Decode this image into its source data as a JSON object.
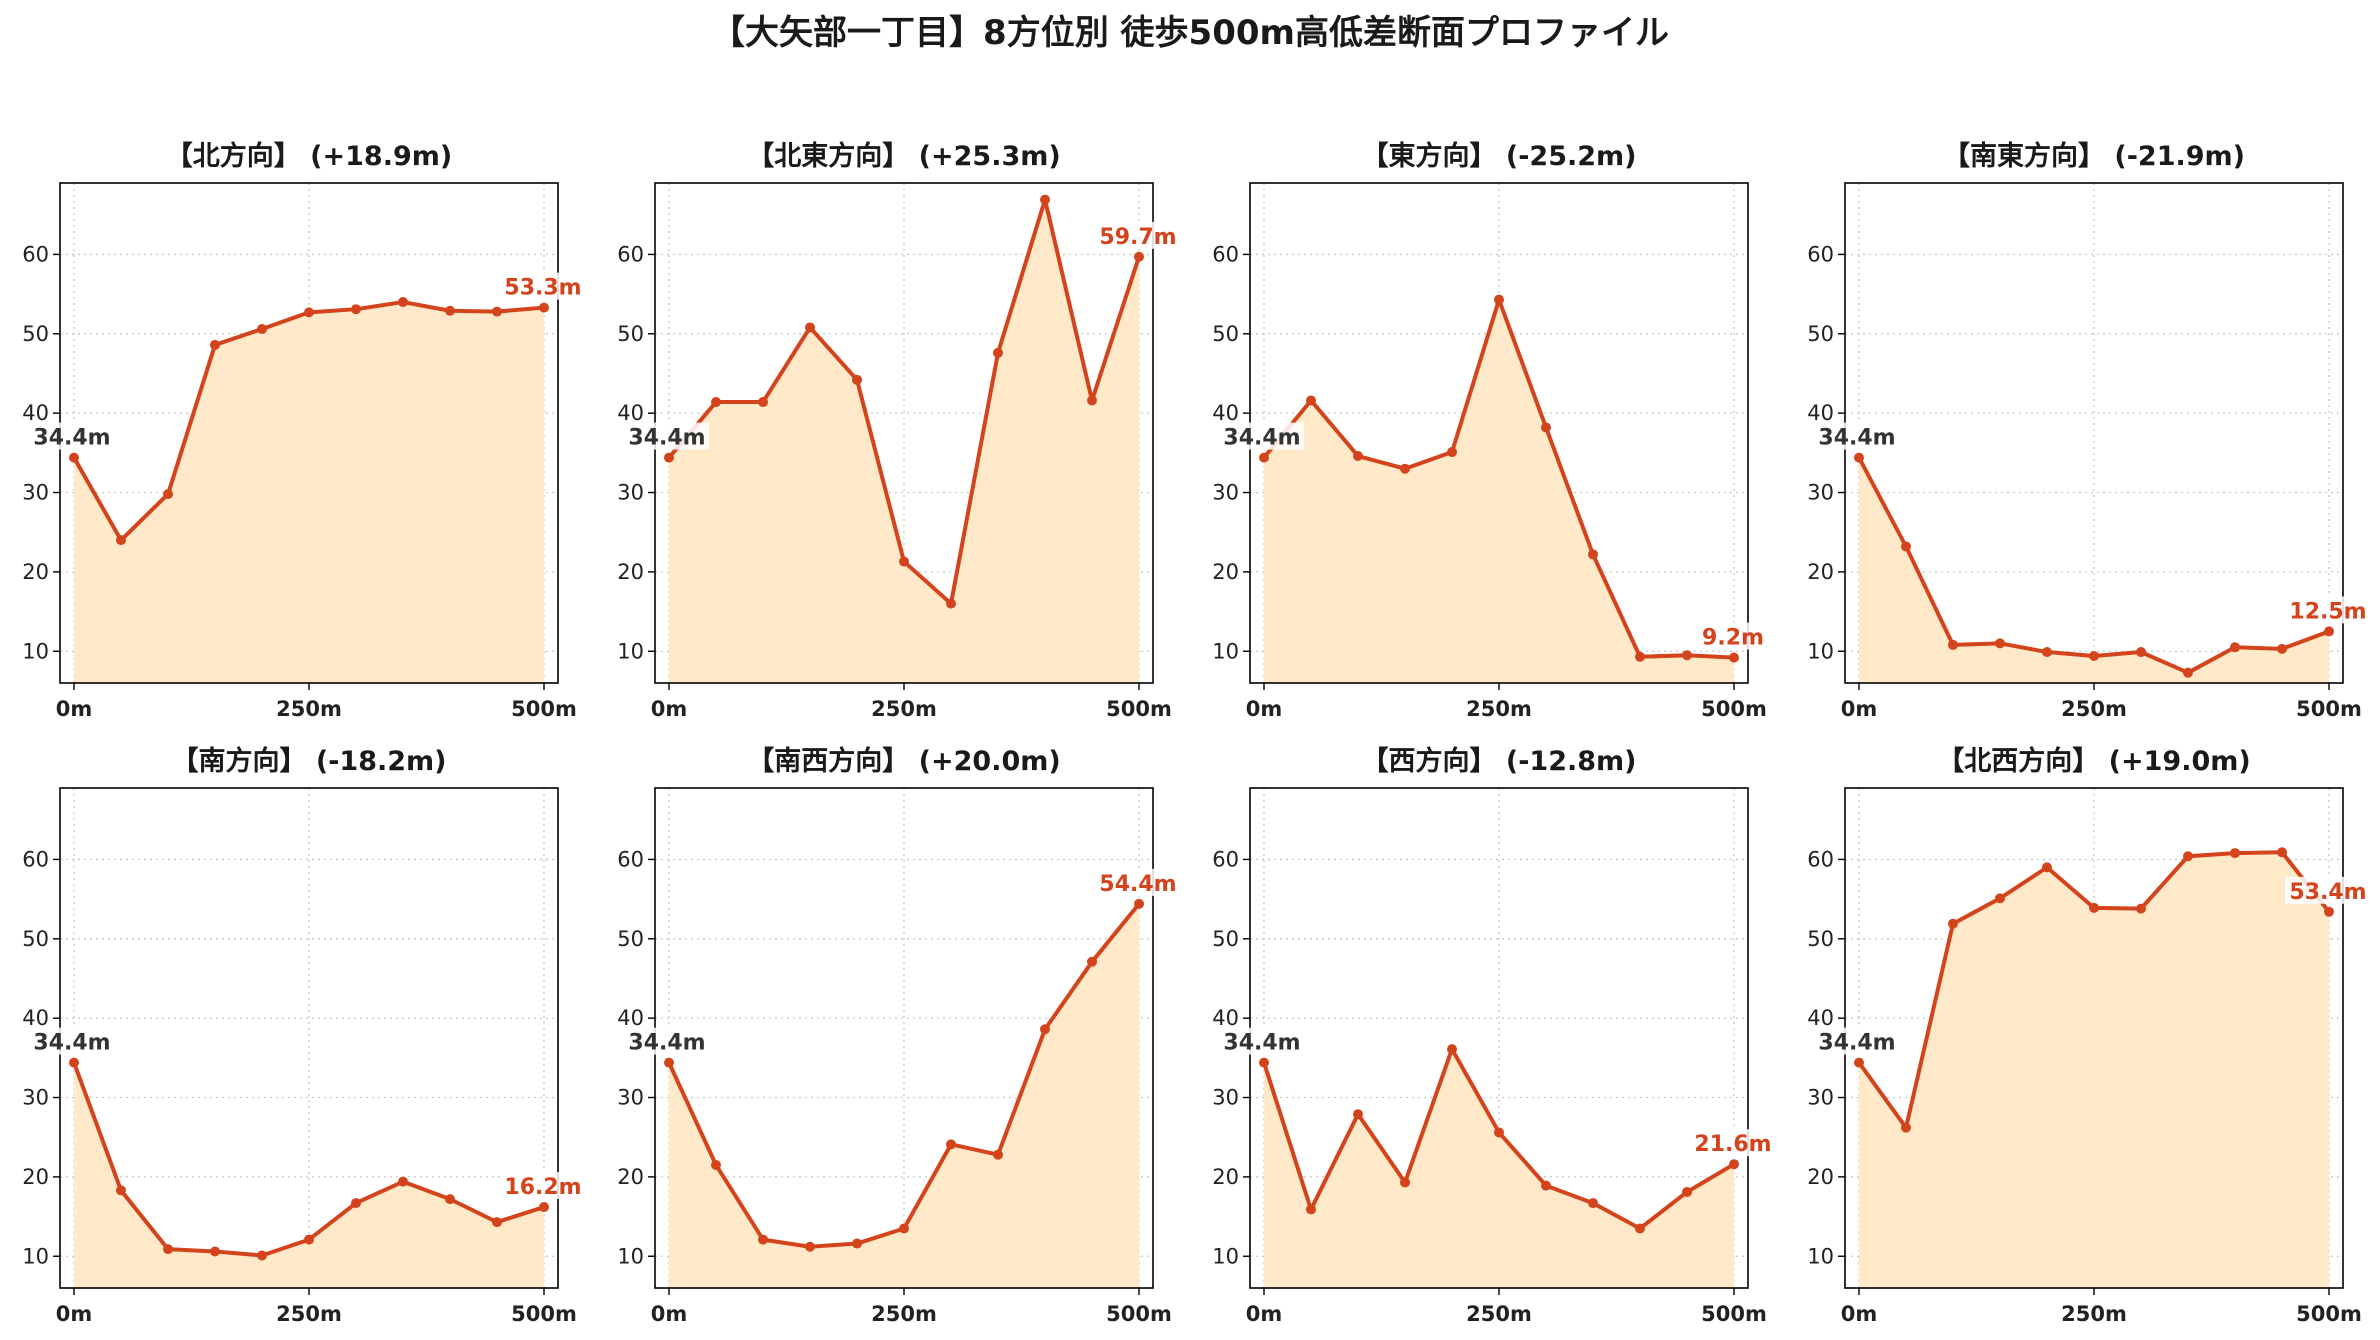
{
  "title": "【大矢部一丁目】8方位別 徒歩500m高低差断面プロファイル",
  "colors": {
    "line": "#d4441c",
    "fill": "#ffe9c8",
    "start_label": "#333333",
    "end_label": "#d4441c",
    "grid": "#c8c8c8"
  },
  "chart_data": [
    {
      "type": "area",
      "title": "【北方向】 (+18.9m)",
      "x": [
        0,
        50,
        100,
        150,
        200,
        250,
        300,
        350,
        400,
        450,
        500
      ],
      "values": [
        34.4,
        24.0,
        29.8,
        48.6,
        50.6,
        52.7,
        53.1,
        54.0,
        52.9,
        52.8,
        53.3
      ],
      "start_label": "34.4m",
      "end_label": "53.3m",
      "x_ticks": [
        "0m",
        "250m",
        "500m"
      ],
      "y_ticks": [
        "10",
        "20",
        "30",
        "40",
        "50",
        "60"
      ],
      "ylim": [
        6,
        69
      ],
      "grid": true
    },
    {
      "type": "area",
      "title": "【北東方向】 (+25.3m)",
      "x": [
        0,
        50,
        100,
        150,
        200,
        250,
        300,
        350,
        400,
        450,
        500
      ],
      "values": [
        34.4,
        41.4,
        41.4,
        50.8,
        44.2,
        21.3,
        16.0,
        47.6,
        66.9,
        41.6,
        59.7
      ],
      "start_label": "34.4m",
      "end_label": "59.7m",
      "x_ticks": [
        "0m",
        "250m",
        "500m"
      ],
      "y_ticks": [
        "10",
        "20",
        "30",
        "40",
        "50",
        "60"
      ],
      "ylim": [
        6,
        69
      ],
      "grid": true
    },
    {
      "type": "area",
      "title": "【東方向】 (-25.2m)",
      "x": [
        0,
        50,
        100,
        150,
        200,
        250,
        300,
        350,
        400,
        450,
        500
      ],
      "values": [
        34.4,
        41.6,
        34.6,
        33.0,
        35.1,
        54.3,
        38.2,
        22.2,
        9.3,
        9.5,
        9.2
      ],
      "start_label": "34.4m",
      "end_label": "9.2m",
      "x_ticks": [
        "0m",
        "250m",
        "500m"
      ],
      "y_ticks": [
        "10",
        "20",
        "30",
        "40",
        "50",
        "60"
      ],
      "ylim": [
        6,
        69
      ],
      "grid": true
    },
    {
      "type": "area",
      "title": "【南東方向】 (-21.9m)",
      "x": [
        0,
        50,
        100,
        150,
        200,
        250,
        300,
        350,
        400,
        450,
        500
      ],
      "values": [
        34.4,
        23.2,
        10.8,
        11.0,
        9.9,
        9.4,
        9.9,
        7.3,
        10.5,
        10.3,
        12.5
      ],
      "start_label": "34.4m",
      "end_label": "12.5m",
      "x_ticks": [
        "0m",
        "250m",
        "500m"
      ],
      "y_ticks": [
        "10",
        "20",
        "30",
        "40",
        "50",
        "60"
      ],
      "ylim": [
        6,
        69
      ],
      "grid": true
    },
    {
      "type": "area",
      "title": "【南方向】 (-18.2m)",
      "x": [
        0,
        50,
        100,
        150,
        200,
        250,
        300,
        350,
        400,
        450,
        500
      ],
      "values": [
        34.4,
        18.3,
        10.9,
        10.6,
        10.1,
        12.1,
        16.7,
        19.4,
        17.2,
        14.3,
        16.2
      ],
      "start_label": "34.4m",
      "end_label": "16.2m",
      "x_ticks": [
        "0m",
        "250m",
        "500m"
      ],
      "y_ticks": [
        "10",
        "20",
        "30",
        "40",
        "50",
        "60"
      ],
      "ylim": [
        6,
        69
      ],
      "grid": true
    },
    {
      "type": "area",
      "title": "【南西方向】 (+20.0m)",
      "x": [
        0,
        50,
        100,
        150,
        200,
        250,
        300,
        350,
        400,
        450,
        500
      ],
      "values": [
        34.4,
        21.5,
        12.1,
        11.2,
        11.6,
        13.5,
        24.1,
        22.8,
        38.6,
        47.1,
        54.4
      ],
      "start_label": "34.4m",
      "end_label": "54.4m",
      "x_ticks": [
        "0m",
        "250m",
        "500m"
      ],
      "y_ticks": [
        "10",
        "20",
        "30",
        "40",
        "50",
        "60"
      ],
      "ylim": [
        6,
        69
      ],
      "grid": true
    },
    {
      "type": "area",
      "title": "【西方向】 (-12.8m)",
      "x": [
        0,
        50,
        100,
        150,
        200,
        250,
        300,
        350,
        400,
        450,
        500
      ],
      "values": [
        34.4,
        15.9,
        27.9,
        19.3,
        36.1,
        25.6,
        18.9,
        16.7,
        13.5,
        18.1,
        21.6
      ],
      "start_label": "34.4m",
      "end_label": "21.6m",
      "x_ticks": [
        "0m",
        "250m",
        "500m"
      ],
      "y_ticks": [
        "10",
        "20",
        "30",
        "40",
        "50",
        "60"
      ],
      "ylim": [
        6,
        69
      ],
      "grid": true
    },
    {
      "type": "area",
      "title": "【北西方向】 (+19.0m)",
      "x": [
        0,
        50,
        100,
        150,
        200,
        250,
        300,
        350,
        400,
        450,
        500
      ],
      "values": [
        34.4,
        26.2,
        51.9,
        55.1,
        59.0,
        53.9,
        53.8,
        60.4,
        60.8,
        60.9,
        53.4
      ],
      "start_label": "34.4m",
      "end_label": "53.4m",
      "x_ticks": [
        "0m",
        "250m",
        "500m"
      ],
      "y_ticks": [
        "10",
        "20",
        "30",
        "40",
        "50",
        "60"
      ],
      "ylim": [
        6,
        69
      ],
      "grid": true
    }
  ]
}
